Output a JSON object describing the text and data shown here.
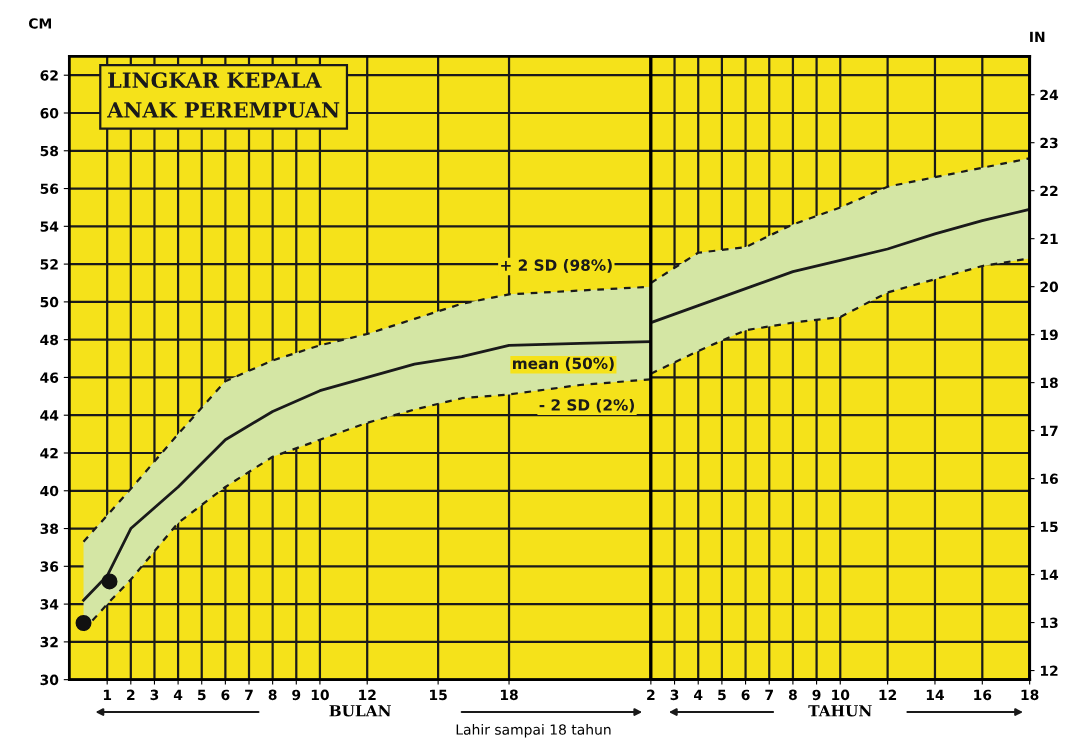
{
  "chart_data": [
    {
      "type": "line",
      "title": "LINGKAR KEPALA\nANAK PEREMPUAN",
      "xlabel": "Lahir sampai 18 tahun",
      "ylabel": "CM",
      "xlim": [
        -0.6,
        24
      ],
      "xticks": [
        1,
        2,
        3,
        4,
        5,
        6,
        7,
        8,
        9,
        10,
        12,
        15,
        18
      ],
      "ylim": [
        30,
        63
      ],
      "yticks": [
        30,
        32,
        34,
        36,
        38,
        40,
        42,
        44,
        46,
        48,
        50,
        52,
        54,
        56,
        58,
        60,
        62
      ],
      "grid": true,
      "series": [
        {
          "color": "#1a1a1a",
          "line_style": "dashed",
          "x": [
            0,
            1,
            2,
            4,
            6,
            8,
            10,
            12,
            14,
            16,
            18,
            21,
            24
          ],
          "values": [
            37.3,
            38.7,
            40.1,
            43.0,
            45.8,
            46.9,
            47.7,
            48.3,
            49.1,
            49.9,
            50.4,
            50.6,
            50.8
          ]
        },
        {
          "color": "#1a1a1a",
          "line_style": "solid",
          "x": [
            0,
            1,
            2,
            4,
            6,
            8,
            10,
            12,
            14,
            16,
            18,
            21,
            24
          ],
          "values": [
            34.2,
            35.5,
            38.0,
            40.2,
            42.7,
            44.2,
            45.3,
            46.0,
            46.7,
            47.1,
            47.7,
            47.8,
            47.9
          ],
          "upper": [
            37.3,
            38.7,
            40.1,
            43.0,
            45.8,
            46.9,
            47.7,
            48.3,
            49.1,
            49.9,
            50.4,
            50.6,
            50.8
          ],
          "lower": [
            32.6,
            34.0,
            35.3,
            38.3,
            40.2,
            41.8,
            42.7,
            43.6,
            44.3,
            44.9,
            45.1,
            45.6,
            45.9
          ]
        },
        {
          "color": "#1a1a1a",
          "line_style": "dashed",
          "x": [
            0,
            1,
            2,
            4,
            6,
            8,
            10,
            12,
            14,
            16,
            18,
            21,
            24
          ],
          "values": [
            32.6,
            34.0,
            35.3,
            38.3,
            40.2,
            41.8,
            42.7,
            43.6,
            44.3,
            44.9,
            45.1,
            45.6,
            45.9
          ]
        },
        {
          "type": "scatter",
          "color": "#111111",
          "marker": "circle",
          "x": [
            0,
            1.1
          ],
          "values": [
            33.0,
            35.2
          ]
        }
      ],
      "annotations": [
        {
          "text": "+ 2 SD (98%)",
          "x": 20,
          "y": 50.6
        },
        {
          "text": "mean (50%)",
          "x": 20.3,
          "y": 47.8
        },
        {
          "text": "- 2 SD (2%)",
          "x": 21.3,
          "y": 45.6
        },
        "BULAN"
      ]
    },
    {
      "type": "line",
      "y2label": "IN",
      "tick_labels": [
        "x",
        "y2"
      ],
      "xlim": [
        2,
        18
      ],
      "xticks": [
        2,
        3,
        4,
        5,
        6,
        7,
        8,
        9,
        10,
        12,
        14,
        16,
        18
      ],
      "ylim": [
        30,
        63
      ],
      "y2lim": [
        11.81,
        24.8
      ],
      "y2ticks": [
        12,
        13,
        14,
        15,
        16,
        17,
        18,
        19,
        20,
        21,
        22,
        23,
        24
      ],
      "grid": true,
      "series": [
        {
          "color": "#1a1a1a",
          "line_style": "dashed",
          "x": [
            2,
            4,
            6,
            8,
            10,
            12,
            14,
            16,
            18
          ],
          "values": [
            51.0,
            52.6,
            52.9,
            54.1,
            55.0,
            56.1,
            56.6,
            57.1,
            57.6
          ]
        },
        {
          "color": "#1a1a1a",
          "line_style": "solid",
          "x": [
            2,
            4,
            6,
            8,
            10,
            12,
            14,
            16,
            18
          ],
          "values": [
            48.9,
            49.8,
            50.7,
            51.6,
            52.2,
            52.8,
            53.6,
            54.3,
            54.9
          ],
          "upper": [
            51.0,
            52.6,
            52.9,
            54.1,
            55.0,
            56.1,
            56.6,
            57.1,
            57.6
          ],
          "lower": [
            46.2,
            47.4,
            48.5,
            48.9,
            49.2,
            50.5,
            51.2,
            51.9,
            52.3
          ]
        },
        {
          "color": "#1a1a1a",
          "line_style": "dashed",
          "x": [
            2,
            4,
            6,
            8,
            10,
            12,
            14,
            16,
            18
          ],
          "values": [
            46.2,
            47.4,
            48.5,
            48.9,
            49.2,
            50.5,
            51.2,
            51.9,
            52.3
          ]
        }
      ],
      "annotations": [
        "TAHUN"
      ]
    }
  ]
}
